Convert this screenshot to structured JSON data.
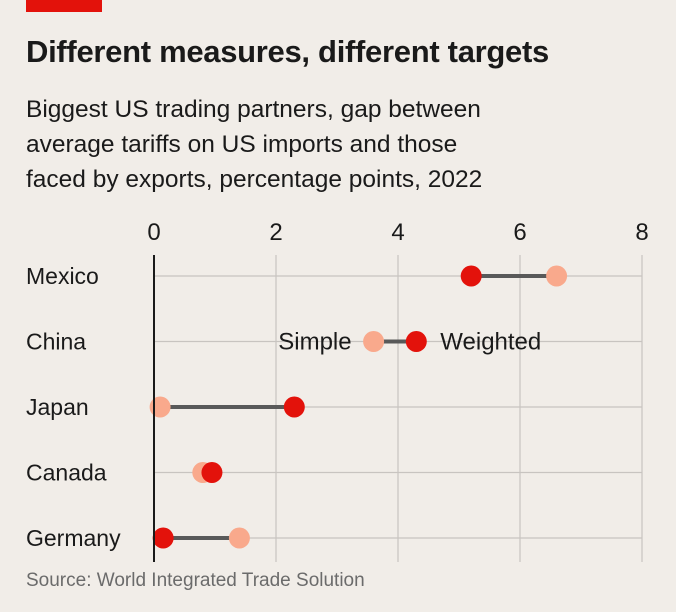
{
  "header": {
    "title": "Different measures, different targets",
    "subtitle_lines": [
      "Biggest US trading partners, gap between",
      "average tariffs on US imports and those",
      "faced by exports, percentage points, 2022"
    ]
  },
  "footer": {
    "source": "Source: World Integrated Trade Solution"
  },
  "colors": {
    "simple": "#f9a98c",
    "weighted": "#e3120b",
    "connector": "#595959",
    "grid": "#c8c4c0",
    "axis": "#1a1a1a",
    "background": "#f1ede8"
  },
  "chart_data": {
    "type": "dumbbell",
    "title": "Different measures, different targets",
    "subtitle": "Biggest US trading partners, gap between average tariffs on US imports and those faced by exports, percentage points, 2022",
    "xlim": [
      0,
      8
    ],
    "x_ticks": [
      0,
      2,
      4,
      6,
      8
    ],
    "grid": true,
    "categories": [
      "Mexico",
      "China",
      "Japan",
      "Canada",
      "Germany"
    ],
    "series": [
      {
        "name": "Simple",
        "values": [
          6.6,
          3.6,
          0.1,
          0.8,
          1.4
        ]
      },
      {
        "name": "Weighted",
        "values": [
          5.2,
          4.3,
          2.3,
          0.95,
          0.15
        ]
      }
    ],
    "legend": {
      "placement": "inline-china-row",
      "simple_label": "Simple",
      "weighted_label": "Weighted"
    }
  }
}
